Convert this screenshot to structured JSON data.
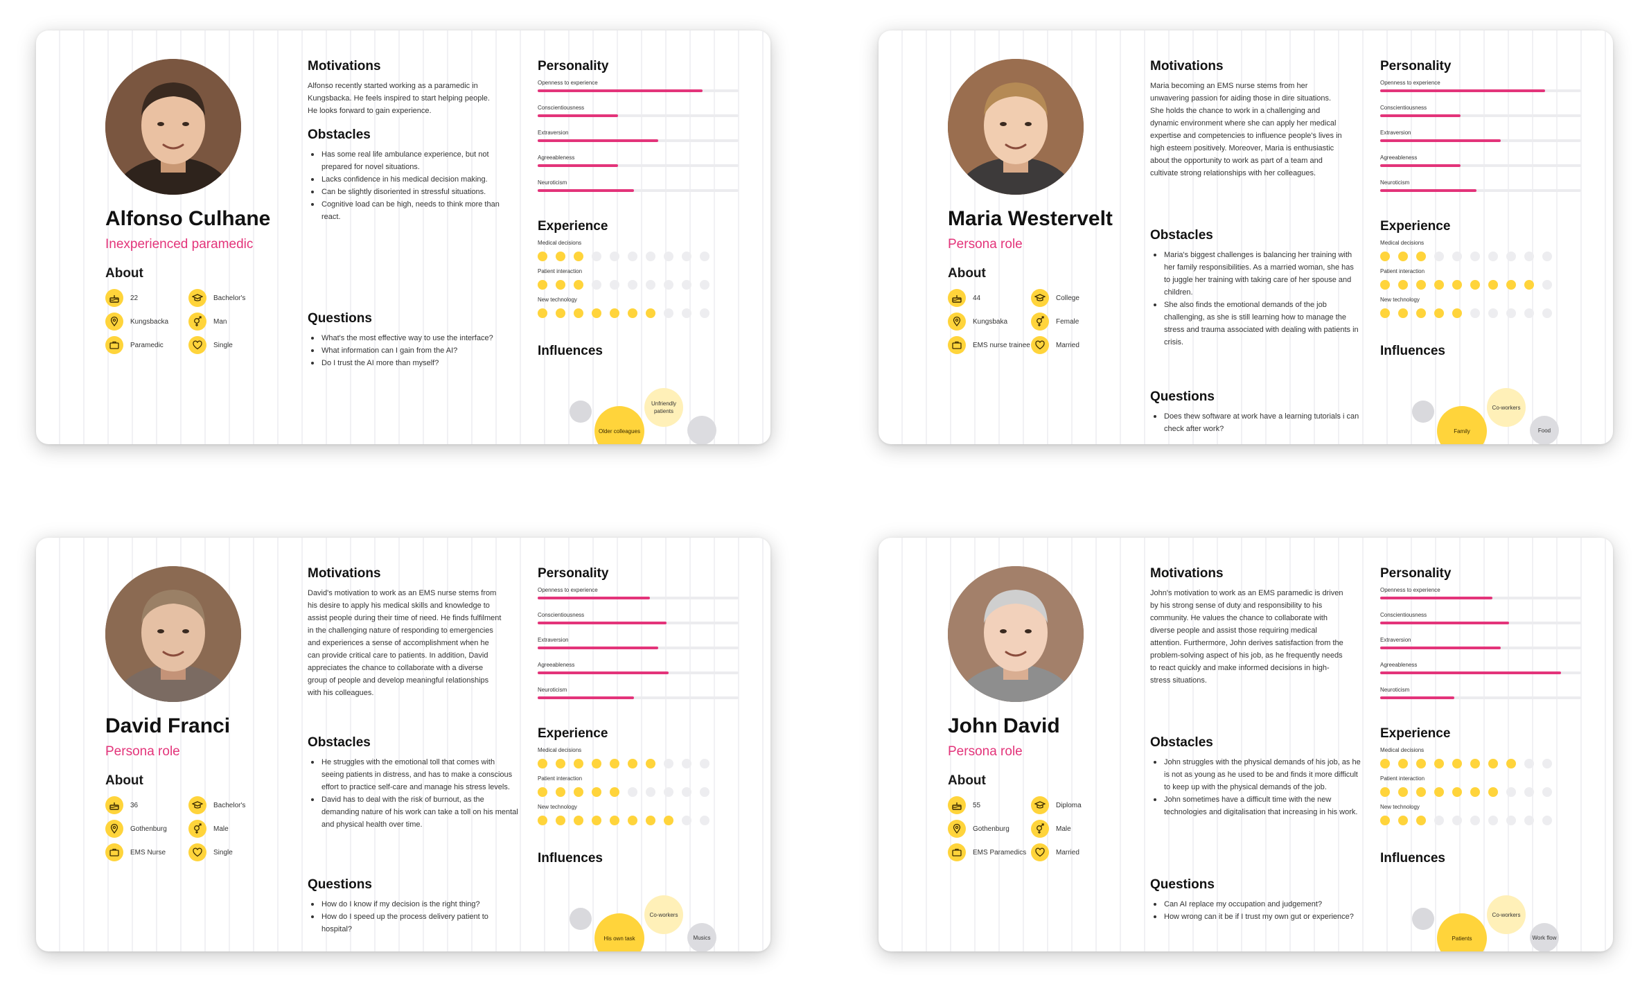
{
  "colors": {
    "accent_pink": "#e3347a",
    "accent_yellow": "#ffd43b",
    "track_grey": "#ececef"
  },
  "section_labels": {
    "about": "About",
    "motivations": "Motivations",
    "obstacles": "Obstacles",
    "questions": "Questions",
    "personality": "Personality",
    "experience": "Experience",
    "influences": "Influences"
  },
  "trait_labels": [
    "Openness to experience",
    "Conscientiousness",
    "Extraversion",
    "Agreeableness",
    "Neuroticism"
  ],
  "experience_labels": [
    "Medical decisions",
    "Patient interaction",
    "New technology"
  ],
  "personas": [
    {
      "name": "Alfonso Culhane",
      "role": "Inexperienced paramedic",
      "about": [
        {
          "icon": "cake-icon",
          "value": "22"
        },
        {
          "icon": "graduation-cap-icon",
          "value": "Bachelor's"
        },
        {
          "icon": "location-pin-icon",
          "value": "Kungsbacka"
        },
        {
          "icon": "gender-icon",
          "value": "Man"
        },
        {
          "icon": "briefcase-icon",
          "value": "Paramedic"
        },
        {
          "icon": "heart-icon",
          "value": "Single"
        }
      ],
      "motivations": "Alfonso recently started working as a paramedic in Kungsbacka. He feels inspired to start helping people. He looks forward to gain experience.",
      "obstacles": [
        "Has some real life ambulance experience, but not prepared for novel situations.",
        "Lacks confidence in his medical decision making.",
        "Can be slightly disoriented in stressful situations.",
        "Cognitive load can be high, needs to think more than react."
      ],
      "questions": [
        "What's the most effective way to use the interface?",
        "What information can I gain from the AI?",
        "Do I trust the AI more than myself?"
      ],
      "personality": [
        0.82,
        0.4,
        0.6,
        0.4,
        0.48
      ],
      "experience": [
        3,
        3,
        7
      ],
      "influences": [
        {
          "label": "Older colleagues",
          "size": "large"
        },
        {
          "label": "Unfriendly patients",
          "size": "medium"
        },
        {
          "label": "",
          "size": "grey-left"
        },
        {
          "label": "",
          "size": "grey-right"
        }
      ]
    },
    {
      "name": "Maria Westervelt",
      "role": "Persona role",
      "about": [
        {
          "icon": "cake-icon",
          "value": "44"
        },
        {
          "icon": "graduation-cap-icon",
          "value": "College"
        },
        {
          "icon": "location-pin-icon",
          "value": "Kungsbaka"
        },
        {
          "icon": "gender-icon",
          "value": "Female"
        },
        {
          "icon": "briefcase-icon",
          "value": "EMS nurse trainee"
        },
        {
          "icon": "heart-icon",
          "value": "Married"
        }
      ],
      "motivations": "Maria becoming an EMS nurse stems from her unwavering passion for aiding those in dire situations. She holds the chance to work in a challenging and dynamic environment where she can apply her medical expertise and competencies to influence people's lives in high esteem positively. Moreover, Maria is enthusiastic about the opportunity to work as part of a team and cultivate strong relationships with her colleagues.",
      "obstacles": [
        "Maria's biggest challenges is balancing her training with her family responsibilities. As a married woman, she has to juggle her training with taking care of her spouse and children.",
        "She also finds the emotional demands of the job challenging, as she is still learning how to manage the stress and trauma associated with dealing with patients in crisis."
      ],
      "questions": [
        "Does thew software at work have a learning tutorials i can check after work?"
      ],
      "personality": [
        0.82,
        0.4,
        0.6,
        0.4,
        0.48
      ],
      "experience": [
        3,
        9,
        5
      ],
      "influences": [
        {
          "label": "Family",
          "size": "large"
        },
        {
          "label": "Co-workers",
          "size": "medium"
        },
        {
          "label": "",
          "size": "grey-left"
        },
        {
          "label": "Food",
          "size": "grey-right"
        }
      ]
    },
    {
      "name": "David Franci",
      "role": "Persona role",
      "about": [
        {
          "icon": "cake-icon",
          "value": "36"
        },
        {
          "icon": "graduation-cap-icon",
          "value": "Bachelor's"
        },
        {
          "icon": "location-pin-icon",
          "value": "Gothenburg"
        },
        {
          "icon": "gender-icon",
          "value": "Male"
        },
        {
          "icon": "briefcase-icon",
          "value": "EMS Nurse"
        },
        {
          "icon": "heart-icon",
          "value": "Single"
        }
      ],
      "motivations": "David's motivation to work as an EMS nurse stems from his desire to apply his medical skills and knowledge to assist people during their time of need. He finds fulfilment in the challenging nature of responding to emergencies and experiences a sense of accomplishment when he can provide critical care to patients. In addition, David appreciates the chance to collaborate with a diverse group of people and develop meaningful relationships with his colleagues.",
      "obstacles": [
        "He struggles with the emotional toll that comes with seeing patients in distress, and has to make a conscious effort to practice self-care and manage his stress levels.",
        "David has to deal with the risk of burnout, as the demanding nature of his work can take a toll on his mental and physical health over time."
      ],
      "questions": [
        "How do I know if my decision is the right thing?",
        "How do I speed up the process delivery patient to hospital?"
      ],
      "personality": [
        0.56,
        0.64,
        0.6,
        0.65,
        0.48
      ],
      "experience": [
        7,
        5,
        8
      ],
      "influences": [
        {
          "label": "His own task",
          "size": "large"
        },
        {
          "label": "Co-workers",
          "size": "medium"
        },
        {
          "label": "",
          "size": "grey-left"
        },
        {
          "label": "Musics",
          "size": "grey-right"
        }
      ]
    },
    {
      "name": "John David",
      "role": "Persona role",
      "about": [
        {
          "icon": "cake-icon",
          "value": "55"
        },
        {
          "icon": "graduation-cap-icon",
          "value": "Diploma"
        },
        {
          "icon": "location-pin-icon",
          "value": "Gothenburg"
        },
        {
          "icon": "gender-icon",
          "value": "Male"
        },
        {
          "icon": "briefcase-icon",
          "value": "EMS Paramedics"
        },
        {
          "icon": "heart-icon",
          "value": "Married"
        }
      ],
      "motivations": "John's motivation to work as an EMS paramedic is driven by his strong sense of duty and responsibility to his community. He values the chance to collaborate with diverse people and assist those requiring medical attention. Furthermore, John derives satisfaction from the problem-solving aspect of his job, as he frequently needs to react quickly and make informed decisions in high-stress situations.",
      "obstacles": [
        "John struggles with the physical demands of his job, as he is not as young as he used to be and finds it more difficult to keep up with the physical demands of the job.",
        "John sometimes have a difficult time with the new technologies and digitalisation that increasing in his work."
      ],
      "questions": [
        "Can AI replace my occupation and judgement?",
        "How wrong can it be if I trust my own gut or experience?"
      ],
      "personality": [
        0.56,
        0.64,
        0.6,
        0.9,
        0.37
      ],
      "experience": [
        8,
        7,
        3
      ],
      "influences": [
        {
          "label": "Patients",
          "size": "large"
        },
        {
          "label": "Co-workers",
          "size": "medium"
        },
        {
          "label": "",
          "size": "grey-left"
        },
        {
          "label": "Work flow",
          "size": "grey-right"
        }
      ]
    }
  ]
}
